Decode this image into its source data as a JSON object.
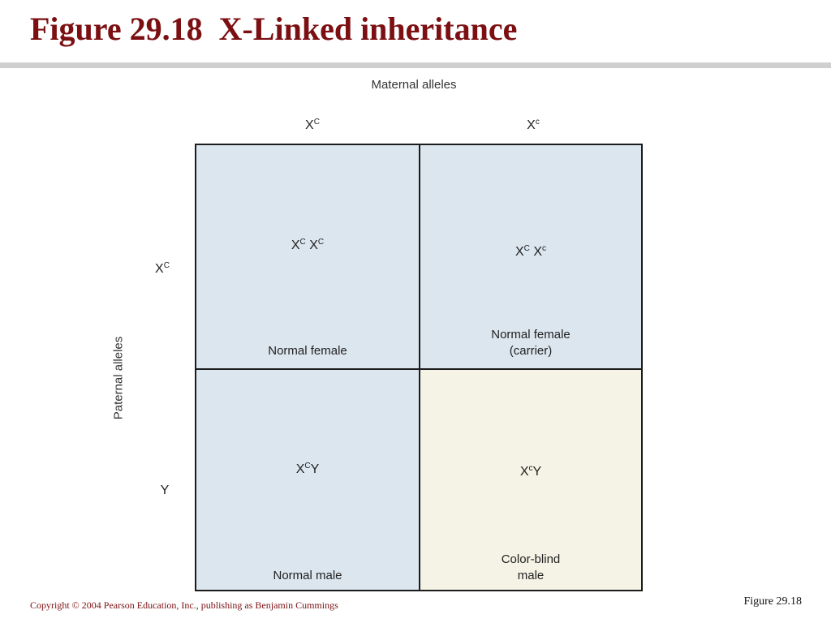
{
  "slide": {
    "title": "Figure 29.18  X-Linked inheritance",
    "copyright": "Copyright © 2004 Pearson Education, Inc., publishing as Benjamin Cummings",
    "figure_number": "Figure 29.18"
  },
  "punnett": {
    "maternal_label": "Maternal alleles",
    "paternal_label": "Paternal alleles",
    "maternal_alleles": [
      {
        "base": "X",
        "sup": "C"
      },
      {
        "base": "X",
        "sup": "c"
      }
    ],
    "paternal_alleles": [
      {
        "base": "X",
        "sup": "C"
      },
      {
        "base": "Y",
        "sup": ""
      }
    ],
    "cells": [
      {
        "genotype": [
          {
            "base": "X",
            "sup": "C"
          },
          {
            "base": " X",
            "sup": "C"
          }
        ],
        "phenotype": [
          "Normal female"
        ],
        "color": "#dce6ee"
      },
      {
        "genotype": [
          {
            "base": "X",
            "sup": "C"
          },
          {
            "base": " X",
            "sup": "c"
          }
        ],
        "phenotype": [
          "Normal female",
          "(carrier)"
        ],
        "color": "#dce6ee"
      },
      {
        "genotype": [
          {
            "base": "X",
            "sup": "C"
          },
          {
            "base": "Y",
            "sup": ""
          }
        ],
        "phenotype": [
          "Normal male"
        ],
        "color": "#dce6ee"
      },
      {
        "genotype": [
          {
            "base": "X",
            "sup": "c"
          },
          {
            "base": "Y",
            "sup": ""
          }
        ],
        "phenotype": [
          "Color-blind",
          "male"
        ],
        "color": "#f4f3e5"
      }
    ]
  },
  "colors": {
    "title": "#7b0f12",
    "normal_cell": "#dce6ee",
    "colorblind_cell": "#f4f3e5"
  }
}
